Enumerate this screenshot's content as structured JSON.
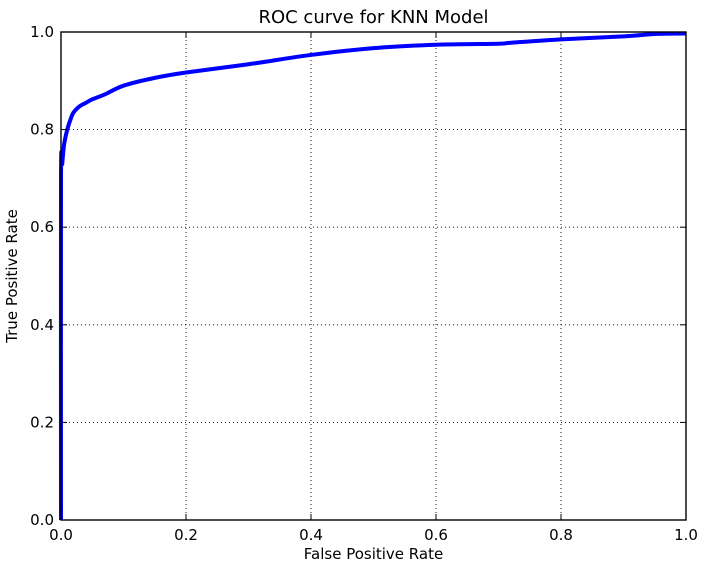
{
  "chart_data": {
    "type": "line",
    "title": "ROC curve for KNN Model",
    "xlabel": "False Positive Rate",
    "ylabel": "True Positive Rate",
    "xlim": [
      0.0,
      1.0
    ],
    "ylim": [
      0.0,
      1.0
    ],
    "grid": true,
    "legend": "none",
    "x_ticks": [
      "0.0",
      "0.2",
      "0.4",
      "0.6",
      "0.8",
      "1.0"
    ],
    "y_ticks": [
      "0.0",
      "0.2",
      "0.4",
      "0.6",
      "0.8",
      "1.0"
    ],
    "series": [
      {
        "color": "#0000ff",
        "x": [
          0.0,
          0.0,
          0.002,
          0.005,
          0.01,
          0.015,
          0.02,
          0.03,
          0.04,
          0.05,
          0.07,
          0.1,
          0.15,
          0.2,
          0.3,
          0.4,
          0.5,
          0.6,
          0.7,
          0.72,
          0.8,
          0.9,
          0.95,
          1.0
        ],
        "y": [
          0.0,
          0.695,
          0.73,
          0.77,
          0.8,
          0.82,
          0.835,
          0.848,
          0.855,
          0.862,
          0.872,
          0.89,
          0.906,
          0.917,
          0.934,
          0.953,
          0.967,
          0.974,
          0.976,
          0.978,
          0.985,
          0.991,
          0.996,
          0.997
        ]
      }
    ]
  }
}
